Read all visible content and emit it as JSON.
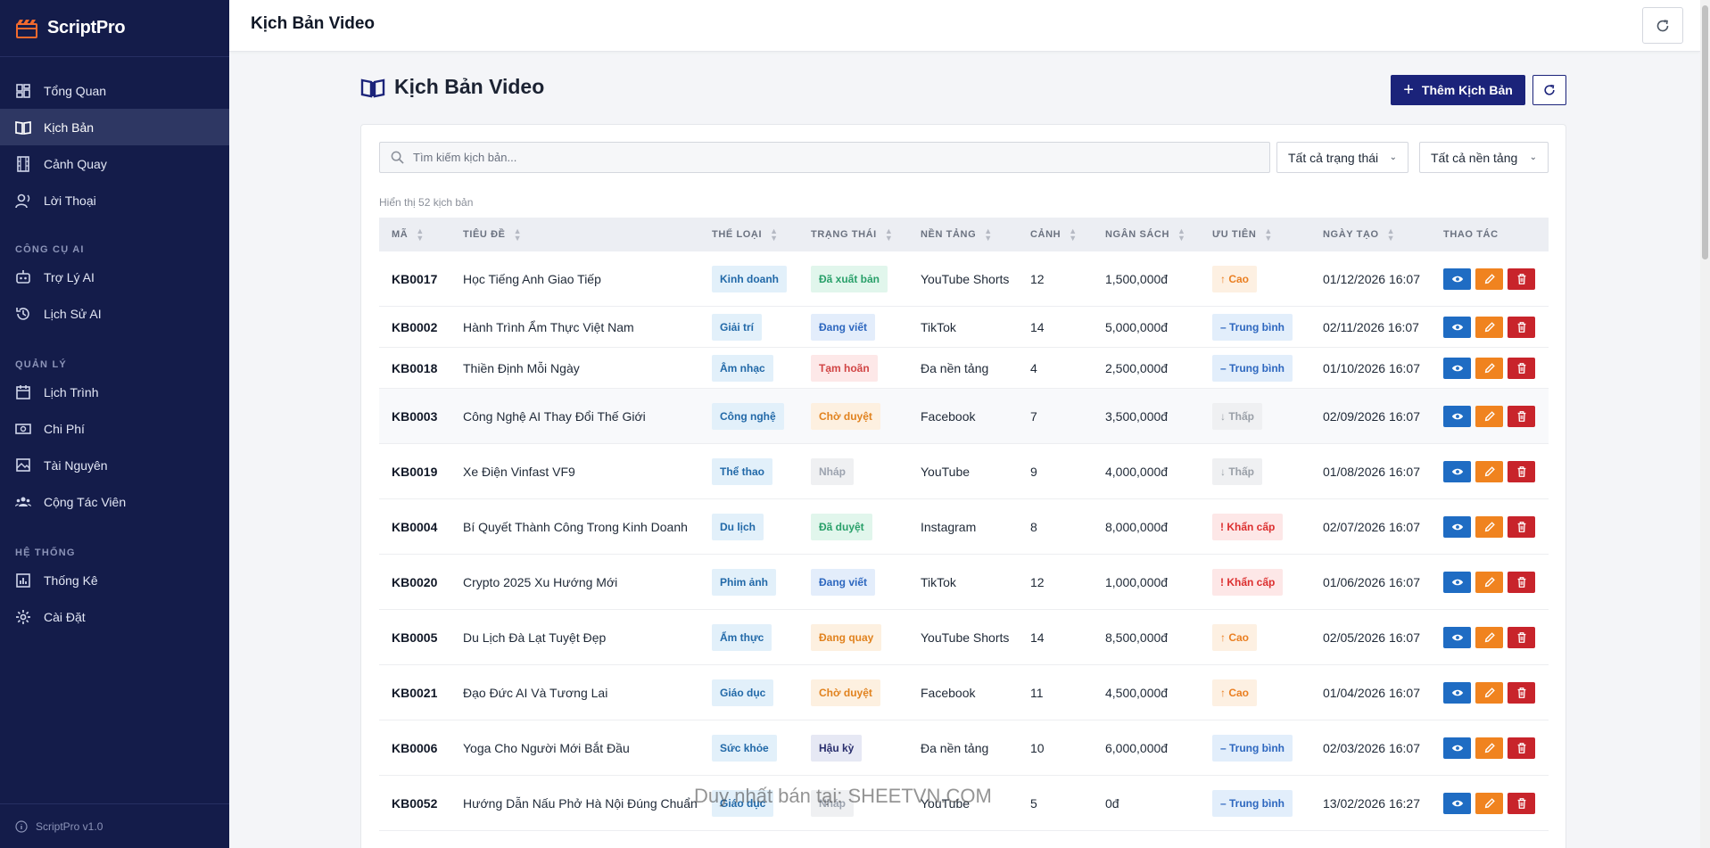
{
  "brand": {
    "name": "ScriptPro",
    "version": "ScriptPro v1.0"
  },
  "sidebar": {
    "main_items": [
      {
        "label": "Tổng Quan",
        "icon": "dashboard-icon"
      },
      {
        "label": "Kịch Bản",
        "icon": "book-icon",
        "active": true
      },
      {
        "label": "Cảnh Quay",
        "icon": "film-icon"
      },
      {
        "label": "Lời Thoại",
        "icon": "voice-icon"
      }
    ],
    "section_ai": "CÔNG CỤ AI",
    "ai_items": [
      {
        "label": "Trợ Lý AI",
        "icon": "robot-icon"
      },
      {
        "label": "Lịch Sử AI",
        "icon": "history-icon"
      }
    ],
    "section_manage": "QUẢN LÝ",
    "manage_items": [
      {
        "label": "Lịch Trình",
        "icon": "calendar-icon"
      },
      {
        "label": "Chi Phí",
        "icon": "money-icon"
      },
      {
        "label": "Tài Nguyên",
        "icon": "images-icon"
      },
      {
        "label": "Cộng Tác Viên",
        "icon": "users-icon"
      }
    ],
    "section_system": "HỆ THỐNG",
    "system_items": [
      {
        "label": "Thống Kê",
        "icon": "chart-icon"
      },
      {
        "label": "Cài Đặt",
        "icon": "gear-icon"
      }
    ]
  },
  "topbar": {
    "title": "Kịch Bản Video"
  },
  "page": {
    "title": "Kịch Bản Video",
    "add_button": "Thêm Kịch Bản",
    "search_placeholder": "Tìm kiếm kịch bản...",
    "status_filter": "Tất cả trạng thái",
    "platform_filter": "Tất cả nền tảng",
    "count_text": "Hiển thị 52 kịch bản"
  },
  "table": {
    "headers": [
      "MÃ",
      "TIÊU ĐỀ",
      "THỂ LOẠI",
      "TRẠNG THÁI",
      "NỀN TẢNG",
      "CẢNH",
      "NGÂN SÁCH",
      "ƯU TIÊN",
      "NGÀY TẠO",
      "THAO TÁC"
    ],
    "rows": [
      {
        "code": "KB0017",
        "title": "Học Tiếng Anh Giao Tiếp",
        "category": "Kinh doanh",
        "status": "Đã xuất bản",
        "status_style": "green",
        "platform": "YouTube Shorts",
        "scenes": "12",
        "budget": "1,500,000đ",
        "priority": "Cao",
        "priority_style": "high",
        "date": "01/12/2026 16:07"
      },
      {
        "code": "KB0002",
        "title": "Hành Trình Ẩm Thực Việt Nam",
        "category": "Giải trí",
        "status": "Đang viết",
        "status_style": "blue",
        "platform": "TikTok",
        "scenes": "14",
        "budget": "5,000,000đ",
        "priority": "Trung bình",
        "priority_style": "med",
        "date": "02/11/2026 16:07"
      },
      {
        "code": "KB0018",
        "title": "Thiền Định Mỗi Ngày",
        "category": "Âm nhạc",
        "status": "Tạm hoãn",
        "status_style": "red",
        "platform": "Đa nền tảng",
        "scenes": "4",
        "budget": "2,500,000đ",
        "priority": "Trung bình",
        "priority_style": "med",
        "date": "01/10/2026 16:07"
      },
      {
        "code": "KB0003",
        "title": "Công Nghệ AI Thay Đổi Thế Giới",
        "category": "Công nghệ",
        "status": "Chờ duyệt",
        "status_style": "orange",
        "platform": "Facebook",
        "scenes": "7",
        "budget": "3,500,000đ",
        "priority": "Thấp",
        "priority_style": "low",
        "date": "02/09/2026 16:07"
      },
      {
        "code": "KB0019",
        "title": "Xe Điện Vinfast VF9",
        "category": "Thể thao",
        "status": "Nháp",
        "status_style": "gray",
        "platform": "YouTube",
        "scenes": "9",
        "budget": "4,000,000đ",
        "priority": "Thấp",
        "priority_style": "low",
        "date": "01/08/2026 16:07"
      },
      {
        "code": "KB0004",
        "title": "Bí Quyết Thành Công Trong Kinh Doanh",
        "category": "Du lịch",
        "status": "Đã duyệt",
        "status_style": "green",
        "platform": "Instagram",
        "scenes": "8",
        "budget": "8,000,000đ",
        "priority": "Khẩn cấp",
        "priority_style": "urg",
        "date": "02/07/2026 16:07"
      },
      {
        "code": "KB0020",
        "title": "Crypto 2025 Xu Hướng Mới",
        "category": "Phim ảnh",
        "status": "Đang viết",
        "status_style": "blue",
        "platform": "TikTok",
        "scenes": "12",
        "budget": "1,000,000đ",
        "priority": "Khẩn cấp",
        "priority_style": "urg",
        "date": "01/06/2026 16:07"
      },
      {
        "code": "KB0005",
        "title": "Du Lịch Đà Lạt Tuyệt Đẹp",
        "category": "Ẩm thực",
        "status": "Đang quay",
        "status_style": "orange",
        "platform": "YouTube Shorts",
        "scenes": "14",
        "budget": "8,500,000đ",
        "priority": "Cao",
        "priority_style": "high",
        "date": "02/05/2026 16:07"
      },
      {
        "code": "KB0021",
        "title": "Đạo Đức AI Và Tương Lai",
        "category": "Giáo dục",
        "status": "Chờ duyệt",
        "status_style": "orange",
        "platform": "Facebook",
        "scenes": "11",
        "budget": "4,500,000đ",
        "priority": "Cao",
        "priority_style": "high",
        "date": "01/04/2026 16:07"
      },
      {
        "code": "KB0006",
        "title": "Yoga Cho Người Mới Bắt Đầu",
        "category": "Sức khỏe",
        "status": "Hậu kỳ",
        "status_style": "navy",
        "platform": "Đa nền tảng",
        "scenes": "10",
        "budget": "6,000,000đ",
        "priority": "Trung bình",
        "priority_style": "med",
        "date": "02/03/2026 16:07"
      },
      {
        "code": "KB0052",
        "title": "Hướng Dẫn Nấu Phở Hà Nội Đúng Chuẩn",
        "category": "Giáo dục",
        "status": "Nháp",
        "status_style": "gray",
        "platform": "YouTube",
        "scenes": "5",
        "budget": "0đ",
        "priority": "Trung bình",
        "priority_style": "med",
        "date": "13/02/2026 16:27"
      }
    ]
  },
  "watermark": "Duy nhất bán tại: SHEETVN.COM",
  "colors": {
    "sidebar": "#141c4a",
    "primary": "#1b237a",
    "view": "#1f6cc3",
    "edit": "#f0831f",
    "delete": "#c8242b"
  }
}
